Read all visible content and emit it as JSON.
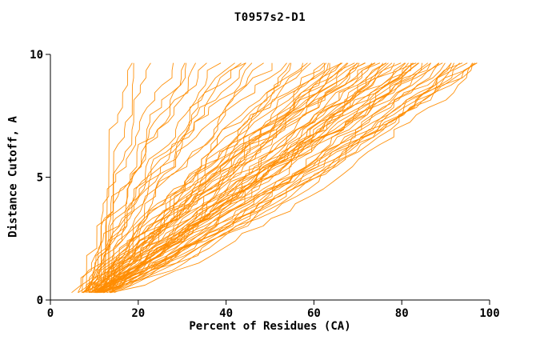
{
  "chart_data": {
    "type": "line",
    "title": "T0957s2-D1",
    "xlabel": "Percent of Residues (CA)",
    "ylabel": "Distance Cutoff, A",
    "xlim": [
      0,
      100
    ],
    "ylim": [
      0,
      10
    ],
    "x_ticks": [
      0,
      20,
      40,
      60,
      80,
      100
    ],
    "y_ticks": [
      0,
      5,
      10
    ],
    "grid": false,
    "legend": "none",
    "line_color": "#ff8c00",
    "axis_color": "#000000",
    "background": "#ffffff",
    "y_min_draw": 0.3,
    "y_max_draw": 9.65,
    "series_format": "[x_percent_at_cutoff0, x_percent_at_cutoff10, shape_exponent, jitter_seed]",
    "series": [
      [
        10,
        19,
        2.2,
        101
      ],
      [
        11,
        21,
        2.0,
        102
      ],
      [
        12,
        23,
        1.8,
        103
      ],
      [
        7,
        29,
        1.5,
        104
      ],
      [
        8,
        32,
        1.4,
        105
      ],
      [
        6,
        35,
        1.3,
        106
      ],
      [
        9,
        37,
        1.5,
        107
      ],
      [
        7,
        40,
        1.2,
        108
      ],
      [
        10,
        42,
        1.4,
        109
      ],
      [
        8,
        44,
        1.3,
        110
      ],
      [
        6,
        46,
        1.2,
        111
      ],
      [
        9,
        48,
        1.35,
        112
      ],
      [
        7,
        50,
        1.25,
        113
      ],
      [
        11,
        33,
        1.6,
        114
      ],
      [
        12,
        45,
        1.5,
        115
      ],
      [
        6,
        52,
        1.1,
        116
      ],
      [
        8,
        54,
        1.2,
        117
      ],
      [
        7,
        56,
        1.0,
        118
      ],
      [
        9,
        58,
        1.15,
        119
      ],
      [
        5,
        60,
        0.95,
        120
      ],
      [
        10,
        60,
        1.2,
        121
      ],
      [
        8,
        62,
        1.1,
        122
      ],
      [
        6,
        64,
        1.0,
        123
      ],
      [
        9,
        64,
        1.25,
        124
      ],
      [
        7,
        66,
        0.9,
        125
      ],
      [
        11,
        66,
        1.2,
        126
      ],
      [
        8,
        68,
        1.05,
        127
      ],
      [
        6,
        68,
        0.95,
        128
      ],
      [
        10,
        70,
        1.15,
        129
      ],
      [
        7,
        70,
        1.0,
        130
      ],
      [
        9,
        72,
        1.1,
        131
      ],
      [
        5,
        72,
        0.9,
        132
      ],
      [
        8,
        74,
        1.05,
        133
      ],
      [
        12,
        74,
        1.3,
        134
      ],
      [
        6,
        75,
        0.95,
        135
      ],
      [
        10,
        75,
        1.15,
        136
      ],
      [
        7,
        73,
        1.0,
        137
      ],
      [
        9,
        69,
        1.1,
        138
      ],
      [
        8,
        71,
        1.2,
        139
      ],
      [
        11,
        67,
        1.25,
        140
      ],
      [
        6,
        76,
        0.9,
        141
      ],
      [
        9,
        78,
        1.0,
        142
      ],
      [
        7,
        78,
        0.85,
        143
      ],
      [
        10,
        80,
        1.05,
        144
      ],
      [
        5,
        80,
        0.8,
        145
      ],
      [
        8,
        82,
        0.95,
        146
      ],
      [
        6,
        82,
        0.85,
        147
      ],
      [
        11,
        84,
        1.1,
        148
      ],
      [
        7,
        84,
        0.9,
        149
      ],
      [
        9,
        86,
        1.0,
        150
      ],
      [
        6,
        86,
        0.8,
        151
      ],
      [
        10,
        88,
        1.05,
        152
      ],
      [
        8,
        88,
        0.9,
        153
      ],
      [
        5,
        90,
        0.75,
        154
      ],
      [
        9,
        90,
        1.0,
        155
      ],
      [
        7,
        92,
        0.85,
        156
      ],
      [
        12,
        92,
        1.1,
        157
      ],
      [
        8,
        77,
        0.95,
        158
      ],
      [
        6,
        79,
        0.8,
        159
      ],
      [
        10,
        81,
        1.0,
        160
      ],
      [
        7,
        83,
        0.9,
        161
      ],
      [
        9,
        85,
        1.05,
        162
      ],
      [
        5,
        87,
        0.75,
        163
      ],
      [
        8,
        89,
        0.95,
        164
      ],
      [
        11,
        91,
        1.1,
        165
      ],
      [
        6,
        93,
        0.8,
        166
      ],
      [
        9,
        94,
        0.9,
        167
      ],
      [
        7,
        95,
        0.75,
        168
      ],
      [
        10,
        96,
        0.95,
        169
      ],
      [
        5,
        96,
        0.7,
        170
      ],
      [
        8,
        97,
        0.85,
        171
      ],
      [
        6,
        98,
        0.75,
        172
      ],
      [
        9,
        98,
        0.9,
        173
      ],
      [
        7,
        99,
        0.8,
        174
      ],
      [
        10,
        100,
        0.9,
        175
      ],
      [
        5,
        100,
        0.65,
        176
      ],
      [
        8,
        99,
        0.85,
        177
      ]
    ]
  }
}
